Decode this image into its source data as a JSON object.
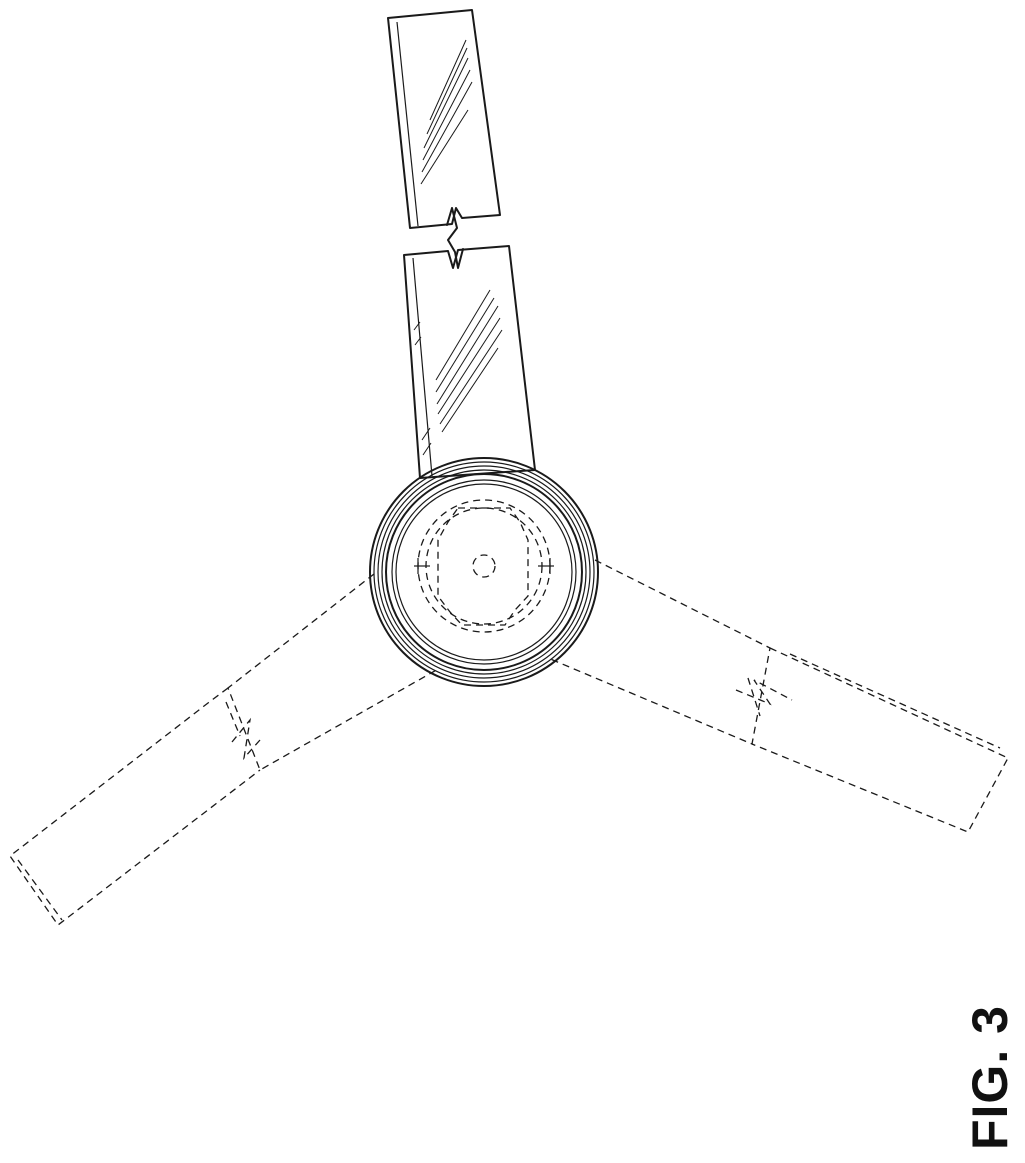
{
  "figure": {
    "label": "FIG. 3"
  }
}
